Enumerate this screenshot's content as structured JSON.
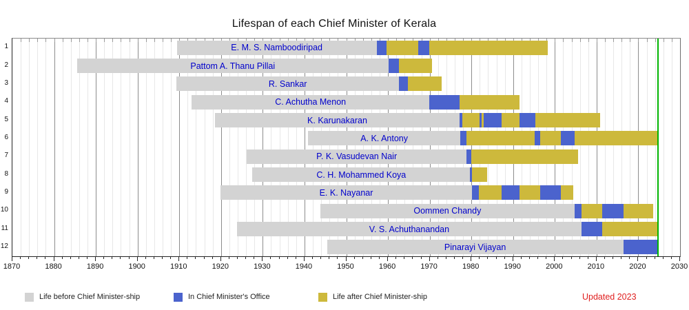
{
  "title": "Lifespan of each Chief Minister of Kerala",
  "updated_label": "Updated 2023",
  "chart_data": {
    "type": "bar",
    "subtype": "gantt-lifespan-timeline",
    "title": "Lifespan of each Chief Minister of Kerala",
    "x_axis": {
      "min": 1870,
      "max": 2030,
      "major_tick_step": 10,
      "minor_tick_step": 2,
      "tick_labels": [
        "1870",
        "1880",
        "1890",
        "1900",
        "1910",
        "1920",
        "1930",
        "1940",
        "1950",
        "1960",
        "1970",
        "1980",
        "1990",
        "2000",
        "2010",
        "2020",
        "2030"
      ]
    },
    "y_axis": {
      "labels": [
        "1",
        "2",
        "3",
        "4",
        "5",
        "6",
        "7",
        "8",
        "9",
        "10",
        "11",
        "12"
      ]
    },
    "today_line": {
      "year": 2024.6
    },
    "grid": "on",
    "legend_position": "bottom",
    "colors": {
      "before": "#d3d3d3",
      "office": "#4b63cd",
      "after": "#cdb93c",
      "today_line": "#00b400",
      "name_text": "#0000cc",
      "updated_text": "#e02020",
      "axis_text": "#111111"
    },
    "legend": [
      {
        "type": "before",
        "label": "Life before Chief Minister-ship"
      },
      {
        "type": "office",
        "label": "In Chief Minister's Office"
      },
      {
        "type": "after",
        "label": "Life after Chief Minister-ship"
      }
    ],
    "rows": [
      {
        "index": "1",
        "name": "E. M. S. Namboodiripad",
        "segments": [
          {
            "start": 1909.4,
            "end": 1957.3,
            "type": "before"
          },
          {
            "start": 1957.3,
            "end": 1959.6,
            "type": "office"
          },
          {
            "start": 1959.6,
            "end": 1967.2,
            "type": "after"
          },
          {
            "start": 1967.2,
            "end": 1969.9,
            "type": "office"
          },
          {
            "start": 1969.9,
            "end": 1998.3,
            "type": "after"
          }
        ]
      },
      {
        "index": "2",
        "name": "Pattom A. Thanu Pillai",
        "segments": [
          {
            "start": 1885.5,
            "end": 1960.1,
            "type": "before"
          },
          {
            "start": 1960.1,
            "end": 1962.7,
            "type": "office"
          },
          {
            "start": 1962.7,
            "end": 1970.6,
            "type": "after"
          }
        ]
      },
      {
        "index": "3",
        "name": "R. Sankar",
        "segments": [
          {
            "start": 1909.3,
            "end": 1962.7,
            "type": "before"
          },
          {
            "start": 1962.7,
            "end": 1964.7,
            "type": "office"
          },
          {
            "start": 1964.7,
            "end": 1972.9,
            "type": "after"
          }
        ]
      },
      {
        "index": "4",
        "name": "C. Achutha Menon",
        "segments": [
          {
            "start": 1913.0,
            "end": 1969.9,
            "type": "before"
          },
          {
            "start": 1969.9,
            "end": 1977.2,
            "type": "office"
          },
          {
            "start": 1977.2,
            "end": 1991.6,
            "type": "after"
          }
        ]
      },
      {
        "index": "5",
        "name": "K. Karunakaran",
        "segments": [
          {
            "start": 1918.5,
            "end": 1977.2,
            "type": "before"
          },
          {
            "start": 1977.2,
            "end": 1977.8,
            "type": "office"
          },
          {
            "start": 1977.8,
            "end": 1981.9,
            "type": "after"
          },
          {
            "start": 1981.9,
            "end": 1982.4,
            "type": "office"
          },
          {
            "start": 1982.4,
            "end": 1983.0,
            "type": "after"
          },
          {
            "start": 1983.0,
            "end": 1987.2,
            "type": "office"
          },
          {
            "start": 1987.2,
            "end": 1991.5,
            "type": "after"
          },
          {
            "start": 1991.5,
            "end": 1995.3,
            "type": "office"
          },
          {
            "start": 1995.3,
            "end": 2010.9,
            "type": "after"
          }
        ]
      },
      {
        "index": "6",
        "name": "A. K. Antony",
        "segments": [
          {
            "start": 1940.9,
            "end": 1977.3,
            "type": "before"
          },
          {
            "start": 1977.3,
            "end": 1978.8,
            "type": "office"
          },
          {
            "start": 1978.8,
            "end": 1995.2,
            "type": "after"
          },
          {
            "start": 1995.2,
            "end": 1996.4,
            "type": "office"
          },
          {
            "start": 1996.4,
            "end": 2001.4,
            "type": "after"
          },
          {
            "start": 2001.4,
            "end": 2004.7,
            "type": "office"
          },
          {
            "start": 2004.7,
            "end": 2024.6,
            "type": "after"
          }
        ]
      },
      {
        "index": "7",
        "name": "P. K. Vasudevan Nair",
        "segments": [
          {
            "start": 1926.2,
            "end": 1978.8,
            "type": "before"
          },
          {
            "start": 1978.8,
            "end": 1979.9,
            "type": "office"
          },
          {
            "start": 1979.9,
            "end": 2005.5,
            "type": "after"
          }
        ]
      },
      {
        "index": "8",
        "name": "C. H. Mohammed Koya",
        "segments": [
          {
            "start": 1927.5,
            "end": 1979.7,
            "type": "before"
          },
          {
            "start": 1979.7,
            "end": 1980.1,
            "type": "office"
          },
          {
            "start": 1980.1,
            "end": 1983.7,
            "type": "after"
          }
        ]
      },
      {
        "index": "9",
        "name": "E. K. Nayanar",
        "segments": [
          {
            "start": 1919.9,
            "end": 1980.1,
            "type": "before"
          },
          {
            "start": 1980.1,
            "end": 1981.8,
            "type": "office"
          },
          {
            "start": 1981.8,
            "end": 1987.2,
            "type": "after"
          },
          {
            "start": 1987.2,
            "end": 1991.5,
            "type": "office"
          },
          {
            "start": 1991.5,
            "end": 1996.4,
            "type": "after"
          },
          {
            "start": 1996.4,
            "end": 2001.4,
            "type": "office"
          },
          {
            "start": 2001.4,
            "end": 2004.4,
            "type": "after"
          }
        ]
      },
      {
        "index": "10",
        "name": "Oommen Chandy",
        "segments": [
          {
            "start": 1943.8,
            "end": 2004.7,
            "type": "before"
          },
          {
            "start": 2004.7,
            "end": 2006.4,
            "type": "office"
          },
          {
            "start": 2006.4,
            "end": 2011.4,
            "type": "after"
          },
          {
            "start": 2011.4,
            "end": 2016.4,
            "type": "office"
          },
          {
            "start": 2016.4,
            "end": 2023.6,
            "type": "after"
          }
        ]
      },
      {
        "index": "11",
        "name": "V. S. Achuthanandan",
        "segments": [
          {
            "start": 1923.8,
            "end": 2006.4,
            "type": "before"
          },
          {
            "start": 2006.4,
            "end": 2011.4,
            "type": "office"
          },
          {
            "start": 2011.4,
            "end": 2024.6,
            "type": "after"
          }
        ]
      },
      {
        "index": "12",
        "name": "Pinarayi Vijayan",
        "segments": [
          {
            "start": 1945.4,
            "end": 2016.4,
            "type": "before"
          },
          {
            "start": 2016.4,
            "end": 2024.6,
            "type": "office"
          }
        ]
      }
    ]
  }
}
